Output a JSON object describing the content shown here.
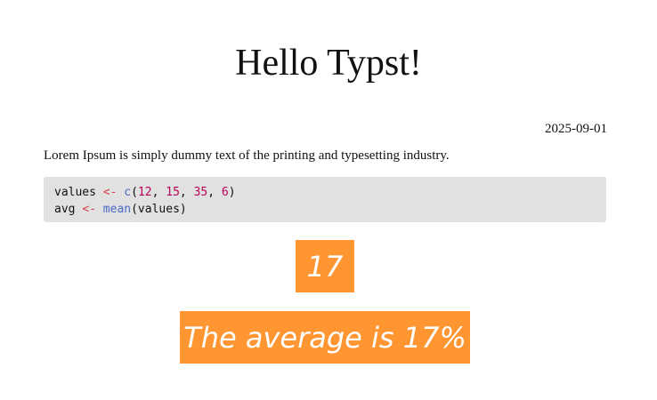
{
  "document": {
    "title": "Hello Typst!",
    "date": "2025-09-01",
    "paragraph": "Lorem Ipsum is simply dummy text of the printing and typesetting industry."
  },
  "code_block": {
    "line1": {
      "var": "values ",
      "op": "<-",
      "sp": " ",
      "fn": "c",
      "open": "(",
      "n1": "12",
      "sep1": ", ",
      "n2": "15",
      "sep2": ", ",
      "n3": "35",
      "sep3": ", ",
      "n4": "6",
      "close": ")"
    },
    "line2": {
      "var": "avg ",
      "op": "<-",
      "sp": " ",
      "fn": "mean",
      "args": "(values)"
    }
  },
  "result": {
    "value": "17",
    "sentence": "The average is 17%"
  },
  "colors": {
    "accent_box": "#ff9632",
    "code_background": "#e1e1e1"
  }
}
